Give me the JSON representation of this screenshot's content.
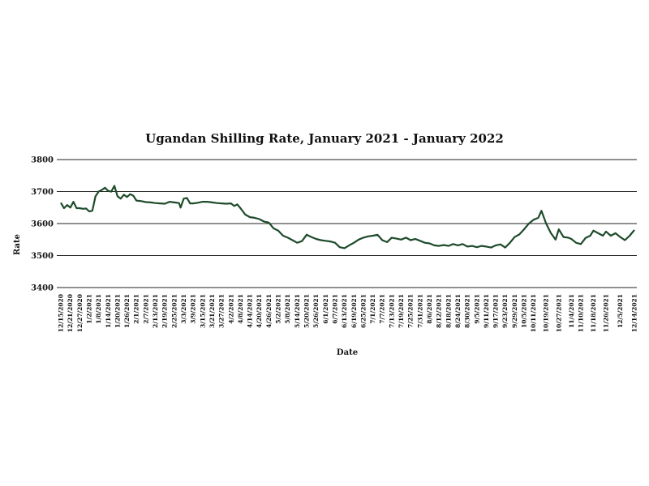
{
  "chart_data": {
    "type": "line",
    "title": "Ugandan Shilling Rate, January 2021 - January 2022",
    "xlabel": "Date",
    "ylabel": "Rate",
    "ylim": [
      3400,
      3800
    ],
    "yticks": [
      3400,
      3500,
      3600,
      3700,
      3800
    ],
    "grid": true,
    "legend": "none",
    "x_tick_labels": [
      "12/15/2020",
      "12/21/2020",
      "12/27/2020",
      "1/2/2021",
      "1/8/2021",
      "1/14/2021",
      "1/20/2021",
      "1/26/2021",
      "2/1/2021",
      "2/7/2021",
      "2/13/2021",
      "2/19/2021",
      "2/25/2021",
      "3/3/2021",
      "3/9/2021",
      "3/15/2021",
      "3/21/2021",
      "3/27/2021",
      "4/2/2021",
      "4/8/2021",
      "4/14/2021",
      "4/20/2021",
      "4/26/2021",
      "5/2/2021",
      "5/8/2021",
      "5/14/2021",
      "5/20/2021",
      "5/26/2021",
      "6/1/2021",
      "6/7/2021",
      "6/13/2021",
      "6/19/2021",
      "6/25/2021",
      "7/1/2021",
      "7/7/2021",
      "7/13/2021",
      "7/19/2021",
      "7/25/2021",
      "7/31/2021",
      "8/6/2021",
      "8/12/2021",
      "8/18/2021",
      "8/24/2021",
      "8/30/2021",
      "9/5/2021",
      "9/11/2021",
      "9/17/2021",
      "9/23/2021",
      "9/29/2021",
      "10/5/2021",
      "10/11/2021",
      "10/19/2021",
      "10/27/2021",
      "11/4/2021",
      "11/10/2021",
      "11/18/2021",
      "11/26/2021",
      "12/5/2021",
      "12/14/2021"
    ],
    "series": [
      {
        "color": "#1d4b2a",
        "points": [
          [
            "12/15/2020",
            3665
          ],
          [
            "12/17/2020",
            3648
          ],
          [
            "12/19/2020",
            3658
          ],
          [
            "12/21/2020",
            3650
          ],
          [
            "12/23/2020",
            3668
          ],
          [
            "12/25/2020",
            3648
          ],
          [
            "12/27/2020",
            3648
          ],
          [
            "12/29/2020",
            3646
          ],
          [
            "12/31/2020",
            3647
          ],
          [
            "1/2/2021",
            3638
          ],
          [
            "1/4/2021",
            3640
          ],
          [
            "1/6/2021",
            3685
          ],
          [
            "1/8/2021",
            3700
          ],
          [
            "1/10/2021",
            3705
          ],
          [
            "1/12/2021",
            3712
          ],
          [
            "1/14/2021",
            3702
          ],
          [
            "1/16/2021",
            3700
          ],
          [
            "1/18/2021",
            3718
          ],
          [
            "1/20/2021",
            3685
          ],
          [
            "1/22/2021",
            3678
          ],
          [
            "1/24/2021",
            3690
          ],
          [
            "1/26/2021",
            3683
          ],
          [
            "1/28/2021",
            3692
          ],
          [
            "1/30/2021",
            3687
          ],
          [
            "2/1/2021",
            3672
          ],
          [
            "2/4/2021",
            3670
          ],
          [
            "2/7/2021",
            3667
          ],
          [
            "2/10/2021",
            3666
          ],
          [
            "2/13/2021",
            3664
          ],
          [
            "2/16/2021",
            3663
          ],
          [
            "2/19/2021",
            3662
          ],
          [
            "2/22/2021",
            3668
          ],
          [
            "2/25/2021",
            3666
          ],
          [
            "2/28/2021",
            3664
          ],
          [
            "3/1/2021",
            3650
          ],
          [
            "3/3/2021",
            3678
          ],
          [
            "3/5/2021",
            3680
          ],
          [
            "3/7/2021",
            3663
          ],
          [
            "3/9/2021",
            3663
          ],
          [
            "3/12/2021",
            3665
          ],
          [
            "3/15/2021",
            3668
          ],
          [
            "3/18/2021",
            3668
          ],
          [
            "3/21/2021",
            3666
          ],
          [
            "3/24/2021",
            3664
          ],
          [
            "3/27/2021",
            3663
          ],
          [
            "3/30/2021",
            3662
          ],
          [
            "4/2/2021",
            3663
          ],
          [
            "4/4/2021",
            3655
          ],
          [
            "4/6/2021",
            3660
          ],
          [
            "4/8/2021",
            3648
          ],
          [
            "4/11/2021",
            3628
          ],
          [
            "4/14/2021",
            3620
          ],
          [
            "4/17/2021",
            3618
          ],
          [
            "4/20/2021",
            3614
          ],
          [
            "4/23/2021",
            3606
          ],
          [
            "4/26/2021",
            3603
          ],
          [
            "4/29/2021",
            3585
          ],
          [
            "5/2/2021",
            3578
          ],
          [
            "5/5/2021",
            3562
          ],
          [
            "5/8/2021",
            3556
          ],
          [
            "5/11/2021",
            3548
          ],
          [
            "5/14/2021",
            3540
          ],
          [
            "5/17/2021",
            3545
          ],
          [
            "5/20/2021",
            3565
          ],
          [
            "5/23/2021",
            3558
          ],
          [
            "5/26/2021",
            3552
          ],
          [
            "5/29/2021",
            3548
          ],
          [
            "6/1/2021",
            3546
          ],
          [
            "6/4/2021",
            3544
          ],
          [
            "6/7/2021",
            3540
          ],
          [
            "6/10/2021",
            3526
          ],
          [
            "6/13/2021",
            3523
          ],
          [
            "6/16/2021",
            3532
          ],
          [
            "6/19/2021",
            3540
          ],
          [
            "6/22/2021",
            3550
          ],
          [
            "6/25/2021",
            3556
          ],
          [
            "6/28/2021",
            3560
          ],
          [
            "7/1/2021",
            3562
          ],
          [
            "7/4/2021",
            3565
          ],
          [
            "7/7/2021",
            3548
          ],
          [
            "7/10/2021",
            3542
          ],
          [
            "7/13/2021",
            3556
          ],
          [
            "7/16/2021",
            3553
          ],
          [
            "7/19/2021",
            3550
          ],
          [
            "7/22/2021",
            3556
          ],
          [
            "7/25/2021",
            3548
          ],
          [
            "7/28/2021",
            3552
          ],
          [
            "7/31/2021",
            3546
          ],
          [
            "8/3/2021",
            3540
          ],
          [
            "8/6/2021",
            3538
          ],
          [
            "8/9/2021",
            3532
          ],
          [
            "8/12/2021",
            3530
          ],
          [
            "8/15/2021",
            3533
          ],
          [
            "8/18/2021",
            3530
          ],
          [
            "8/21/2021",
            3536
          ],
          [
            "8/24/2021",
            3532
          ],
          [
            "8/27/2021",
            3536
          ],
          [
            "8/30/2021",
            3528
          ],
          [
            "9/2/2021",
            3530
          ],
          [
            "9/5/2021",
            3526
          ],
          [
            "9/8/2021",
            3530
          ],
          [
            "9/11/2021",
            3528
          ],
          [
            "9/14/2021",
            3525
          ],
          [
            "9/17/2021",
            3532
          ],
          [
            "9/20/2021",
            3535
          ],
          [
            "9/23/2021",
            3525
          ],
          [
            "9/26/2021",
            3540
          ],
          [
            "9/29/2021",
            3558
          ],
          [
            "10/2/2021",
            3566
          ],
          [
            "10/5/2021",
            3582
          ],
          [
            "10/8/2021",
            3600
          ],
          [
            "10/11/2021",
            3612
          ],
          [
            "10/14/2021",
            3618
          ],
          [
            "10/16/2021",
            3640
          ],
          [
            "10/19/2021",
            3600
          ],
          [
            "10/22/2021",
            3570
          ],
          [
            "10/25/2021",
            3550
          ],
          [
            "10/27/2021",
            3582
          ],
          [
            "10/30/2021",
            3558
          ],
          [
            "11/2/2021",
            3556
          ],
          [
            "11/4/2021",
            3552
          ],
          [
            "11/7/2021",
            3540
          ],
          [
            "11/10/2021",
            3536
          ],
          [
            "11/13/2021",
            3555
          ],
          [
            "11/16/2021",
            3562
          ],
          [
            "11/18/2021",
            3578
          ],
          [
            "11/21/2021",
            3570
          ],
          [
            "11/24/2021",
            3562
          ],
          [
            "11/26/2021",
            3575
          ],
          [
            "11/29/2021",
            3562
          ],
          [
            "12/2/2021",
            3570
          ],
          [
            "12/5/2021",
            3558
          ],
          [
            "12/8/2021",
            3548
          ],
          [
            "12/11/2021",
            3562
          ],
          [
            "12/14/2021",
            3580
          ]
        ]
      }
    ]
  }
}
